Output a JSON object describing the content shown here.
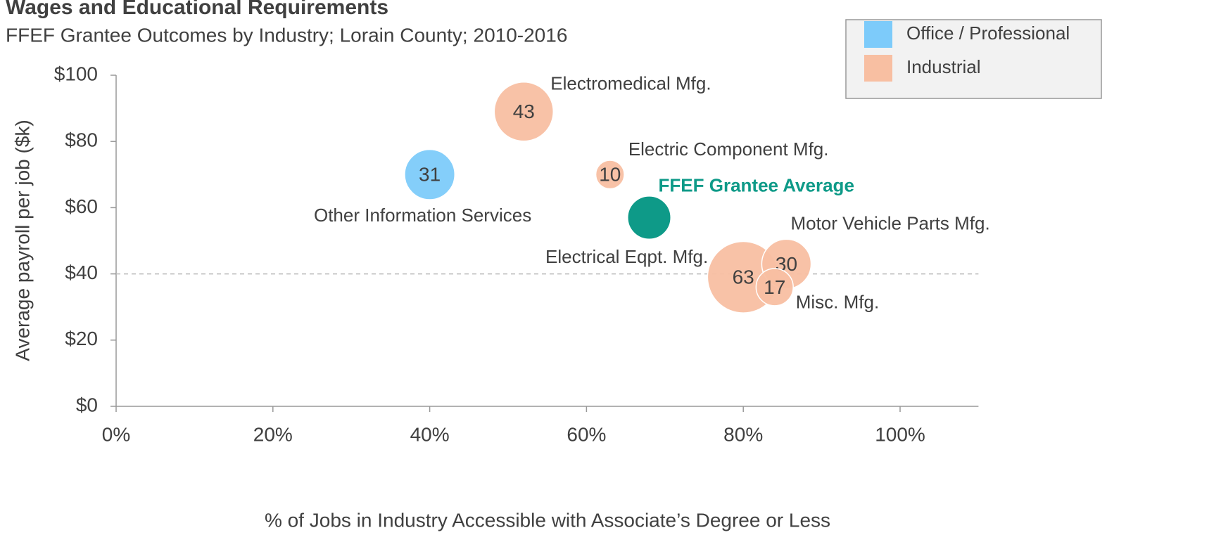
{
  "chart_data": {
    "type": "bubble",
    "title": "Wages and Educational Requirements",
    "subtitle": "FFEF Grantee Outcomes by Industry; Lorain County; 2010-2016",
    "x_label": "% of Jobs in Industry Accessible with Associate’s Degree or Less",
    "y_label": "Average payroll per job ($k)",
    "xlim": [
      0,
      110
    ],
    "ylim": [
      0,
      100
    ],
    "xticks": [
      {
        "value": 0,
        "label": "0%"
      },
      {
        "value": 20,
        "label": "20%"
      },
      {
        "value": 40,
        "label": "40%"
      },
      {
        "value": 60,
        "label": "60%"
      },
      {
        "value": 80,
        "label": "80%"
      },
      {
        "value": 100,
        "label": "100%"
      }
    ],
    "yticks": [
      {
        "value": 0,
        "label": "$0"
      },
      {
        "value": 20,
        "label": "$20"
      },
      {
        "value": 40,
        "label": "$40"
      },
      {
        "value": 60,
        "label": "$60"
      },
      {
        "value": 80,
        "label": "$80"
      },
      {
        "value": 100,
        "label": "$100"
      }
    ],
    "reference_line": 40,
    "legend": "top-right",
    "series": [
      {
        "name": "Office / Professional",
        "color": "#7dcbfa",
        "labels": [
          "Other Information Services"
        ],
        "x": [
          40
        ],
        "values": [
          70
        ],
        "sizes": [
          31
        ]
      },
      {
        "name": "Industrial",
        "color": "#f8bfa2",
        "labels": [
          "Electromedical Mfg.",
          "Electric Component Mfg.",
          "Electrical Eqpt. Mfg.",
          "Motor Vehicle Parts Mfg.",
          "Misc. Mfg."
        ],
        "x": [
          52,
          63,
          80,
          85.5,
          84
        ],
        "values": [
          89,
          70,
          39,
          43,
          36
        ],
        "sizes": [
          43,
          10,
          63,
          30,
          17
        ]
      }
    ],
    "average": {
      "label": "FFEF Grantee Average",
      "color": "#0e9a88",
      "x": 68,
      "y": 57,
      "size": 23
    }
  }
}
